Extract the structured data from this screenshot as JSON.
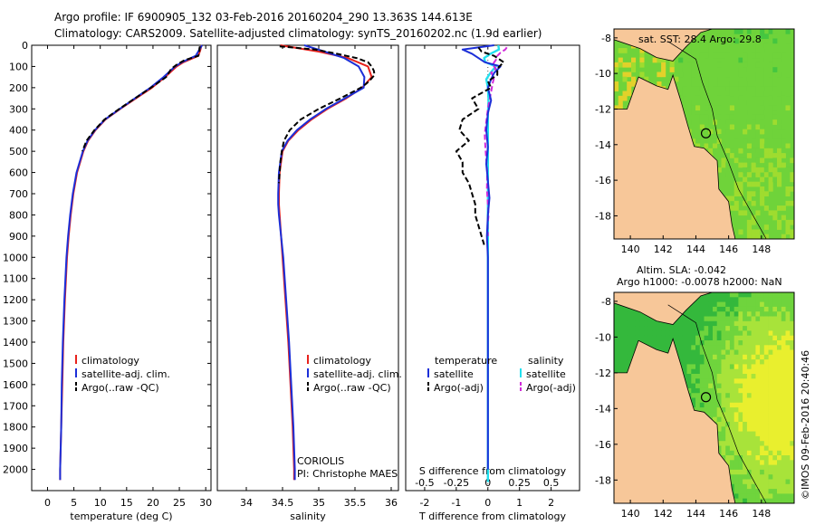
{
  "header": {
    "line1": "Argo profile: IF 6900905_132 03-Feb-2016 20160204_290 13.363S 144.613E",
    "line2": "Climatology: CARS2009. Satellite-adjusted climatology: synTS_20160202.nc (1.9d earlier)"
  },
  "colors": {
    "clim": "#e8221c",
    "sat": "#1c2fd8",
    "argo": "#000000",
    "sat_s": "#22e0ef",
    "argo_s": "#d12ad9",
    "land": "#f7c799",
    "axis": "#000000"
  },
  "chart_data": [
    {
      "type": "line",
      "id": "temperature",
      "xlabel": "temperature (deg C)",
      "ylabel": "",
      "xlim": [
        -3,
        31
      ],
      "ylim": [
        2100,
        0
      ],
      "xticks": [
        0,
        5,
        10,
        15,
        20,
        25,
        30
      ],
      "yticks": [
        0,
        100,
        200,
        300,
        400,
        500,
        600,
        700,
        800,
        900,
        1000,
        1100,
        1200,
        1300,
        1400,
        1500,
        1600,
        1700,
        1800,
        1900,
        2000
      ],
      "legend": [
        "climatology",
        "satellite-adj. clim.",
        "Argo(..raw -QC)"
      ],
      "series": [
        {
          "name": "climatology",
          "depth": [
            0,
            20,
            50,
            80,
            100,
            150,
            200,
            250,
            300,
            350,
            400,
            450,
            500,
            600,
            700,
            800,
            900,
            1000,
            1200,
            1400,
            1600,
            1800,
            2000,
            2050
          ],
          "values": [
            29.2,
            29.0,
            28.6,
            25.8,
            24.5,
            22.3,
            19.8,
            16.8,
            13.8,
            11.0,
            9.1,
            7.7,
            6.8,
            5.6,
            4.9,
            4.4,
            4.0,
            3.7,
            3.3,
            3.0,
            2.8,
            2.6,
            2.4,
            2.4
          ]
        },
        {
          "name": "satellite-adj. clim.",
          "depth": [
            0,
            20,
            50,
            80,
            100,
            150,
            200,
            250,
            300,
            350,
            400,
            450,
            500,
            600,
            700,
            800,
            900,
            1000,
            1200,
            1400,
            1600,
            1800,
            2000,
            2050
          ],
          "values": [
            29.3,
            28.8,
            28.1,
            25.5,
            24.2,
            22.0,
            19.5,
            16.6,
            13.7,
            10.9,
            9.0,
            7.6,
            6.7,
            5.5,
            4.8,
            4.3,
            3.9,
            3.6,
            3.2,
            2.9,
            2.7,
            2.6,
            2.4,
            2.4
          ]
        },
        {
          "name": "Argo(..raw -QC)",
          "depth": [
            5,
            15,
            30,
            50,
            70,
            90,
            110,
            130,
            150,
            200,
            250,
            300,
            350,
            400,
            450,
            500
          ],
          "values": [
            28.9,
            28.8,
            28.8,
            28.6,
            26.0,
            24.6,
            23.5,
            23.0,
            22.5,
            19.6,
            16.6,
            13.6,
            10.8,
            8.9,
            7.4,
            6.6
          ]
        }
      ]
    },
    {
      "type": "line",
      "id": "salinity",
      "xlabel": "salinity",
      "xlim": [
        33.6,
        36.1
      ],
      "ylim": [
        2100,
        0
      ],
      "xticks": [
        34,
        34.5,
        35,
        35.5,
        36
      ],
      "legend": [
        "climatology",
        "satellite-adj. clim.",
        "Argo(..raw -QC)"
      ],
      "annotation": [
        "CORIOLIS",
        "PI: Christophe MAES"
      ],
      "series": [
        {
          "name": "climatology",
          "depth": [
            0,
            30,
            60,
            100,
            150,
            200,
            250,
            300,
            350,
            400,
            450,
            500,
            600,
            700,
            750,
            800,
            900,
            1000,
            1200,
            1400,
            1600,
            1800,
            2000,
            2050
          ],
          "values": [
            34.47,
            35.0,
            35.4,
            35.68,
            35.73,
            35.6,
            35.38,
            35.12,
            34.9,
            34.72,
            34.58,
            34.5,
            34.46,
            34.45,
            34.45,
            34.46,
            34.48,
            34.5,
            34.54,
            34.58,
            34.61,
            34.64,
            34.66,
            34.66
          ]
        },
        {
          "name": "satellite-adj. clim.",
          "depth": [
            0,
            30,
            60,
            100,
            150,
            200,
            250,
            300,
            350,
            400,
            450,
            500,
            600,
            700,
            750,
            800,
            900,
            1000,
            1200,
            1400,
            1600,
            1800,
            2000,
            2050
          ],
          "values": [
            34.8,
            35.08,
            35.35,
            35.55,
            35.63,
            35.62,
            35.36,
            35.1,
            34.88,
            34.7,
            34.57,
            34.49,
            34.45,
            34.44,
            34.44,
            34.45,
            34.48,
            34.51,
            34.55,
            34.59,
            34.62,
            34.65,
            34.67,
            34.67
          ]
        },
        {
          "name": "Argo(..raw -QC)",
          "depth": [
            5,
            20,
            40,
            60,
            80,
            100,
            120,
            140,
            160,
            180,
            200,
            250,
            300,
            350,
            400,
            450,
            500,
            550,
            600,
            650
          ],
          "values": [
            34.46,
            34.95,
            35.25,
            35.52,
            35.68,
            35.73,
            35.76,
            35.77,
            35.72,
            35.66,
            35.58,
            35.3,
            35.0,
            34.75,
            34.6,
            34.52,
            34.49,
            34.47,
            34.46,
            34.45
          ]
        }
      ]
    },
    {
      "type": "line",
      "id": "difference",
      "xlabel": "T difference from climatology",
      "xlabel_top": "S difference from climatology",
      "xlim": [
        -2.6,
        2.9
      ],
      "ylim": [
        2100,
        0
      ],
      "xticks": [
        -2,
        -1,
        0,
        1,
        2
      ],
      "xticks_s": [
        -0.5,
        -0.25,
        0,
        0.25,
        0.5
      ],
      "legend_headers": [
        "temperature",
        "salinity"
      ],
      "legend": [
        "satellite",
        "Argo(-adj)",
        "satellite",
        "Argo(-adj)"
      ],
      "series": [
        {
          "name": "temperature satellite",
          "depth": [
            0,
            20,
            40,
            60,
            80,
            100,
            130,
            160,
            200,
            260,
            320,
            400,
            480,
            560,
            640,
            720,
            800,
            900,
            1000,
            1200,
            1400,
            1600,
            1800,
            2000
          ],
          "values": [
            0.2,
            -0.8,
            -0.5,
            -0.3,
            -0.1,
            0.4,
            0.2,
            0.1,
            0.0,
            0.1,
            0.0,
            -0.05,
            0.0,
            -0.05,
            0.0,
            0.05,
            0.0,
            -0.03,
            0.0,
            0.0,
            0.0,
            0.0,
            0.0,
            0.0
          ]
        },
        {
          "name": "temperature Argo(-adj)",
          "depth": [
            10,
            30,
            50,
            80,
            110,
            140,
            170,
            200,
            250,
            300,
            350,
            400,
            450,
            500,
            550,
            600,
            650,
            700,
            750,
            800,
            850,
            900,
            950
          ],
          "values": [
            -0.3,
            -0.2,
            0.2,
            0.5,
            0.3,
            0.3,
            0.0,
            0.1,
            -0.5,
            -0.3,
            -0.8,
            -0.9,
            -0.6,
            -1.0,
            -0.8,
            -0.8,
            -0.6,
            -0.5,
            -0.4,
            -0.4,
            -0.3,
            -0.2,
            -0.1
          ]
        },
        {
          "name": "salinity satellite",
          "depth": [
            0,
            20,
            40,
            60,
            80,
            100,
            130,
            160,
            200,
            260,
            320,
            400,
            480,
            560,
            640,
            720,
            800,
            900,
            1000,
            1200,
            1400,
            1600,
            1800,
            2000,
            2060
          ],
          "values": [
            0.33,
            0.35,
            0.08,
            -0.12,
            -0.08,
            0.25,
            0.08,
            -0.05,
            0.0,
            0.02,
            0.0,
            0.0,
            0.0,
            0.0,
            0.0,
            0.0,
            0.0,
            0.0,
            0.0,
            0.0,
            0.0,
            0.0,
            0.0,
            0.0,
            0.0
          ]
        },
        {
          "name": "salinity Argo(-adj)",
          "depth": [
            10,
            20,
            35,
            50,
            70,
            90,
            110,
            130,
            150,
            180,
            220,
            260,
            300,
            360,
            420,
            480,
            540,
            600,
            680,
            750,
            800,
            850,
            900
          ],
          "values": [
            0.6,
            0.55,
            0.4,
            0.3,
            0.25,
            0.15,
            0.25,
            0.1,
            0.2,
            0.15,
            0.1,
            0.05,
            0.0,
            -0.05,
            -0.1,
            -0.08,
            -0.05,
            -0.02,
            -0.03,
            0.0,
            0.02,
            -0.01,
            0.0
          ]
        }
      ]
    },
    {
      "type": "heatmap",
      "id": "sst_map",
      "title": "sat. SST: 28.4 Argo: 29.8",
      "xticks": [
        140,
        142,
        144,
        146,
        148
      ],
      "yticks": [
        -8,
        -10,
        -12,
        -14,
        -16,
        -18
      ],
      "xlim": [
        139,
        150
      ],
      "ylim": [
        -19.3,
        -7.5
      ],
      "float_position": [
        144.613,
        -13.363
      ]
    },
    {
      "type": "heatmap",
      "id": "sla_map",
      "title_line1": "Altim. SLA: -0.042",
      "title_line2": "Argo h1000: -0.0078 h2000: NaN",
      "xticks": [
        140,
        142,
        144,
        146,
        148
      ],
      "yticks": [
        -8,
        -10,
        -12,
        -14,
        -16,
        -18
      ],
      "xlim": [
        139,
        150
      ],
      "ylim": [
        -19.3,
        -7.5
      ],
      "float_position": [
        144.613,
        -13.363
      ]
    }
  ],
  "credit": "©IMOS 09-Feb-2016 20:40:46"
}
